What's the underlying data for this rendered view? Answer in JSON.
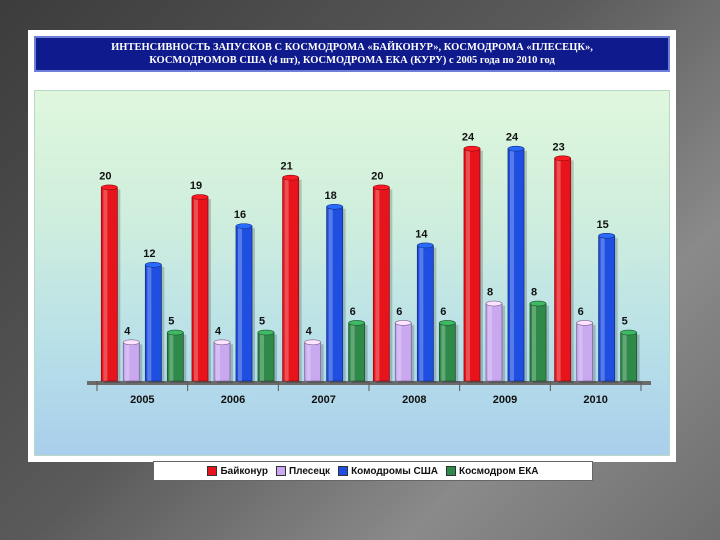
{
  "title": {
    "line1": "ИНТЕНСИВНОСТЬ ЗАПУСКОВ С КОСМОДРОМА «БАЙКОНУР», КОСМОДРОМА «ПЛЕСЕЦК»,",
    "line2": "КОСМОДРОМОВ США (4 шт), КОСМОДРОМА ЕКА (КУРУ) с 2005 года по 2010 год"
  },
  "chart_data": {
    "type": "bar",
    "title": "ИНТЕНСИВНОСТЬ ЗАПУСКОВ С КОСМОДРОМА «БАЙКОНУР», КОСМОДРОМА «ПЛЕСЕЦК», КОСМОДРОМОВ США (4 шт), КОСМОДРОМА ЕКА (КУРУ) с 2005 года по 2010 год",
    "categories": [
      "2005",
      "2006",
      "2007",
      "2008",
      "2009",
      "2010"
    ],
    "series": [
      {
        "name": "Байконур",
        "color": "#e8141b",
        "values": [
          20,
          19,
          21,
          20,
          24,
          23
        ]
      },
      {
        "name": "Плесецк",
        "color": "#c9a8f0",
        "values": [
          4,
          4,
          4,
          6,
          8,
          6
        ]
      },
      {
        "name": "Комодромы США",
        "color": "#1f4fe0",
        "values": [
          12,
          16,
          18,
          14,
          24,
          15
        ]
      },
      {
        "name": "Космодром ЕКА",
        "color": "#2f8a4a",
        "values": [
          5,
          5,
          6,
          6,
          8,
          5
        ]
      }
    ],
    "ylim": [
      0,
      25
    ],
    "grid": false,
    "legend_position": "bottom"
  }
}
